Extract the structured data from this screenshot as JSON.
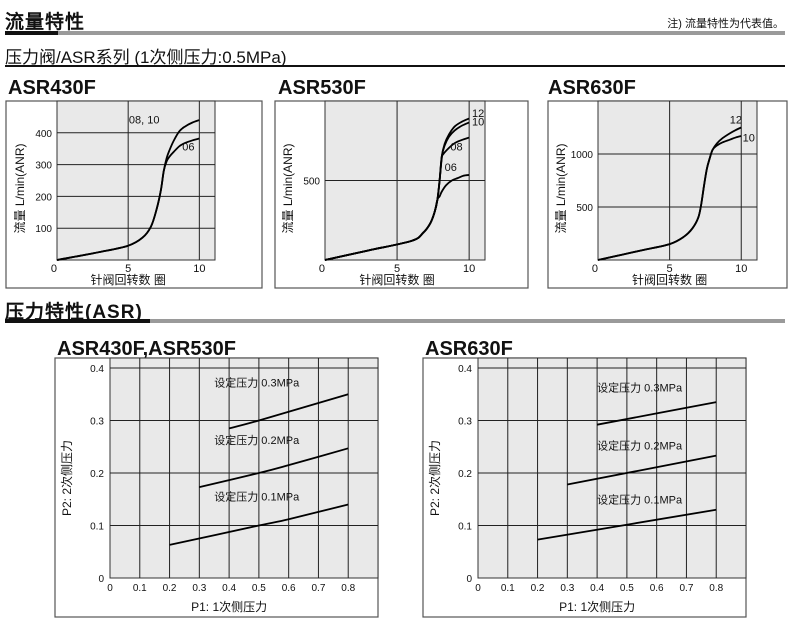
{
  "header": {
    "title": "流量特性",
    "note": "注) 流量特性为代表值。",
    "subtitle": "压力阀/ASR系列 (1次侧压力:0.5MPa)"
  },
  "section2": {
    "title": "压力特性(ASR)"
  },
  "chart_data": [
    {
      "type": "line",
      "title": "ASR430F",
      "xlabel": "针阀回转数 圈",
      "ylabel": "流量 L/min(ANR)",
      "xlim": [
        0,
        11.1
      ],
      "ylim": [
        0,
        500
      ],
      "xticks": [
        0,
        5,
        10
      ],
      "yticks": [
        100,
        200,
        300,
        400
      ],
      "y0_label": "0",
      "grid": true,
      "series": [
        {
          "name": "08, 10",
          "x": [
            0,
            3,
            5,
            6,
            6.6,
            7,
            7.3,
            7.5,
            7.7,
            7.9,
            8.2,
            8.6,
            9,
            9.5,
            10
          ],
          "y": [
            0,
            25,
            45,
            70,
            105,
            160,
            220,
            280,
            320,
            345,
            375,
            405,
            420,
            432,
            440
          ]
        },
        {
          "name": "06",
          "x": [
            0,
            3,
            5,
            6,
            6.6,
            7,
            7.3,
            7.5,
            7.7,
            7.9,
            8.2,
            8.6,
            9,
            9.5,
            10
          ],
          "y": [
            0,
            25,
            45,
            70,
            105,
            160,
            220,
            280,
            310,
            325,
            340,
            358,
            368,
            376,
            382
          ]
        }
      ]
    },
    {
      "type": "line",
      "title": "ASR530F",
      "xlabel": "针阀回转数 圈",
      "ylabel": "流量 L/min(ANR)",
      "xlim": [
        0,
        11.1
      ],
      "ylim": [
        0,
        1000
      ],
      "xticks": [
        0,
        5,
        10
      ],
      "yticks": [
        500
      ],
      "y0_label": "0",
      "grid": true,
      "series": [
        {
          "name": "12",
          "x": [
            0,
            3,
            6,
            6.8,
            7.3,
            7.6,
            7.8,
            7.95,
            8.1,
            8.3,
            8.6,
            9,
            9.5,
            10
          ],
          "y": [
            0,
            60,
            120,
            170,
            230,
            300,
            380,
            500,
            650,
            730,
            790,
            840,
            870,
            890
          ]
        },
        {
          "name": "10",
          "x": [
            0,
            3,
            6,
            6.8,
            7.3,
            7.6,
            7.8,
            7.95,
            8.1,
            8.3,
            8.6,
            9,
            9.5,
            10
          ],
          "y": [
            0,
            60,
            120,
            170,
            230,
            300,
            380,
            500,
            650,
            720,
            775,
            815,
            845,
            865
          ]
        },
        {
          "name": "08",
          "x": [
            0,
            3,
            6,
            6.8,
            7.3,
            7.6,
            7.8,
            7.95,
            8.1,
            8.2,
            8.6,
            9,
            9.5,
            10
          ],
          "y": [
            0,
            60,
            120,
            170,
            230,
            300,
            380,
            500,
            640,
            665,
            705,
            735,
            755,
            770
          ]
        },
        {
          "name": "06",
          "x": [
            0,
            3,
            6,
            6.8,
            7.3,
            7.6,
            7.8,
            7.95,
            8.1,
            8.4,
            8.8,
            9.2,
            9.6,
            10
          ],
          "y": [
            0,
            60,
            120,
            170,
            230,
            300,
            380,
            400,
            430,
            470,
            500,
            515,
            530,
            535
          ]
        }
      ]
    },
    {
      "type": "line",
      "title": "ASR630F",
      "xlabel": "针阀回转数 圈",
      "ylabel": "流量 L/min(ANR)",
      "xlim": [
        0,
        11.1
      ],
      "ylim": [
        0,
        1500
      ],
      "xticks": [
        0,
        5,
        10
      ],
      "yticks": [
        500,
        1000
      ],
      "y0_label": "0",
      "grid": true,
      "series": [
        {
          "name": "12",
          "x": [
            0,
            3,
            5,
            6,
            6.6,
            7,
            7.2,
            7.4,
            7.6,
            7.8,
            8,
            8.3,
            8.7,
            9.2,
            9.6,
            10
          ],
          "y": [
            0,
            90,
            150,
            220,
            300,
            400,
            520,
            700,
            860,
            960,
            1040,
            1100,
            1150,
            1195,
            1225,
            1250
          ]
        },
        {
          "name": "10",
          "x": [
            0,
            3,
            5,
            6,
            6.6,
            7,
            7.2,
            7.4,
            7.6,
            7.8,
            8,
            8.3,
            8.7,
            9.2,
            9.6,
            10
          ],
          "y": [
            0,
            90,
            150,
            220,
            300,
            400,
            520,
            700,
            860,
            960,
            1040,
            1080,
            1110,
            1135,
            1155,
            1170
          ]
        }
      ]
    },
    {
      "type": "line",
      "title": "ASR430F,ASR530F",
      "xlabel": "P1: 1次侧压力",
      "ylabel": "P2: 2次侧压力",
      "xlim": [
        0,
        0.9
      ],
      "ylim": [
        0,
        0.419
      ],
      "xticks": [
        0,
        0.1,
        0.2,
        0.3,
        0.4,
        0.5,
        0.6,
        0.7,
        0.8
      ],
      "yticks": [
        0,
        0.1,
        0.2,
        0.3,
        0.4
      ],
      "grid": true,
      "series": [
        {
          "name": "设定压力 0.3MPa",
          "x": [
            0.4,
            0.5,
            0.8
          ],
          "y": [
            0.285,
            0.3,
            0.35
          ]
        },
        {
          "name": "设定压力 0.2MPa",
          "x": [
            0.3,
            0.5,
            0.6,
            0.8
          ],
          "y": [
            0.173,
            0.2,
            0.215,
            0.247
          ]
        },
        {
          "name": "设定压力 0.1MPa",
          "x": [
            0.2,
            0.5,
            0.6,
            0.8
          ],
          "y": [
            0.063,
            0.1,
            0.112,
            0.14
          ]
        }
      ]
    },
    {
      "type": "line",
      "title": "ASR630F",
      "xlabel": "P1: 1次侧压力",
      "ylabel": "P2: 2次侧压力",
      "xlim": [
        0,
        0.9
      ],
      "ylim": [
        0,
        0.419
      ],
      "xticks": [
        0,
        0.1,
        0.2,
        0.3,
        0.4,
        0.5,
        0.6,
        0.7,
        0.8
      ],
      "yticks": [
        0,
        0.1,
        0.2,
        0.3,
        0.4
      ],
      "grid": true,
      "series": [
        {
          "name": "设定压力 0.3MPa",
          "x": [
            0.4,
            0.8
          ],
          "y": [
            0.292,
            0.335
          ]
        },
        {
          "name": "设定压力 0.2MPa",
          "x": [
            0.3,
            0.8
          ],
          "y": [
            0.178,
            0.233
          ]
        },
        {
          "name": "设定压力 0.1MPa",
          "x": [
            0.2,
            0.8
          ],
          "y": [
            0.073,
            0.13
          ]
        }
      ]
    }
  ]
}
